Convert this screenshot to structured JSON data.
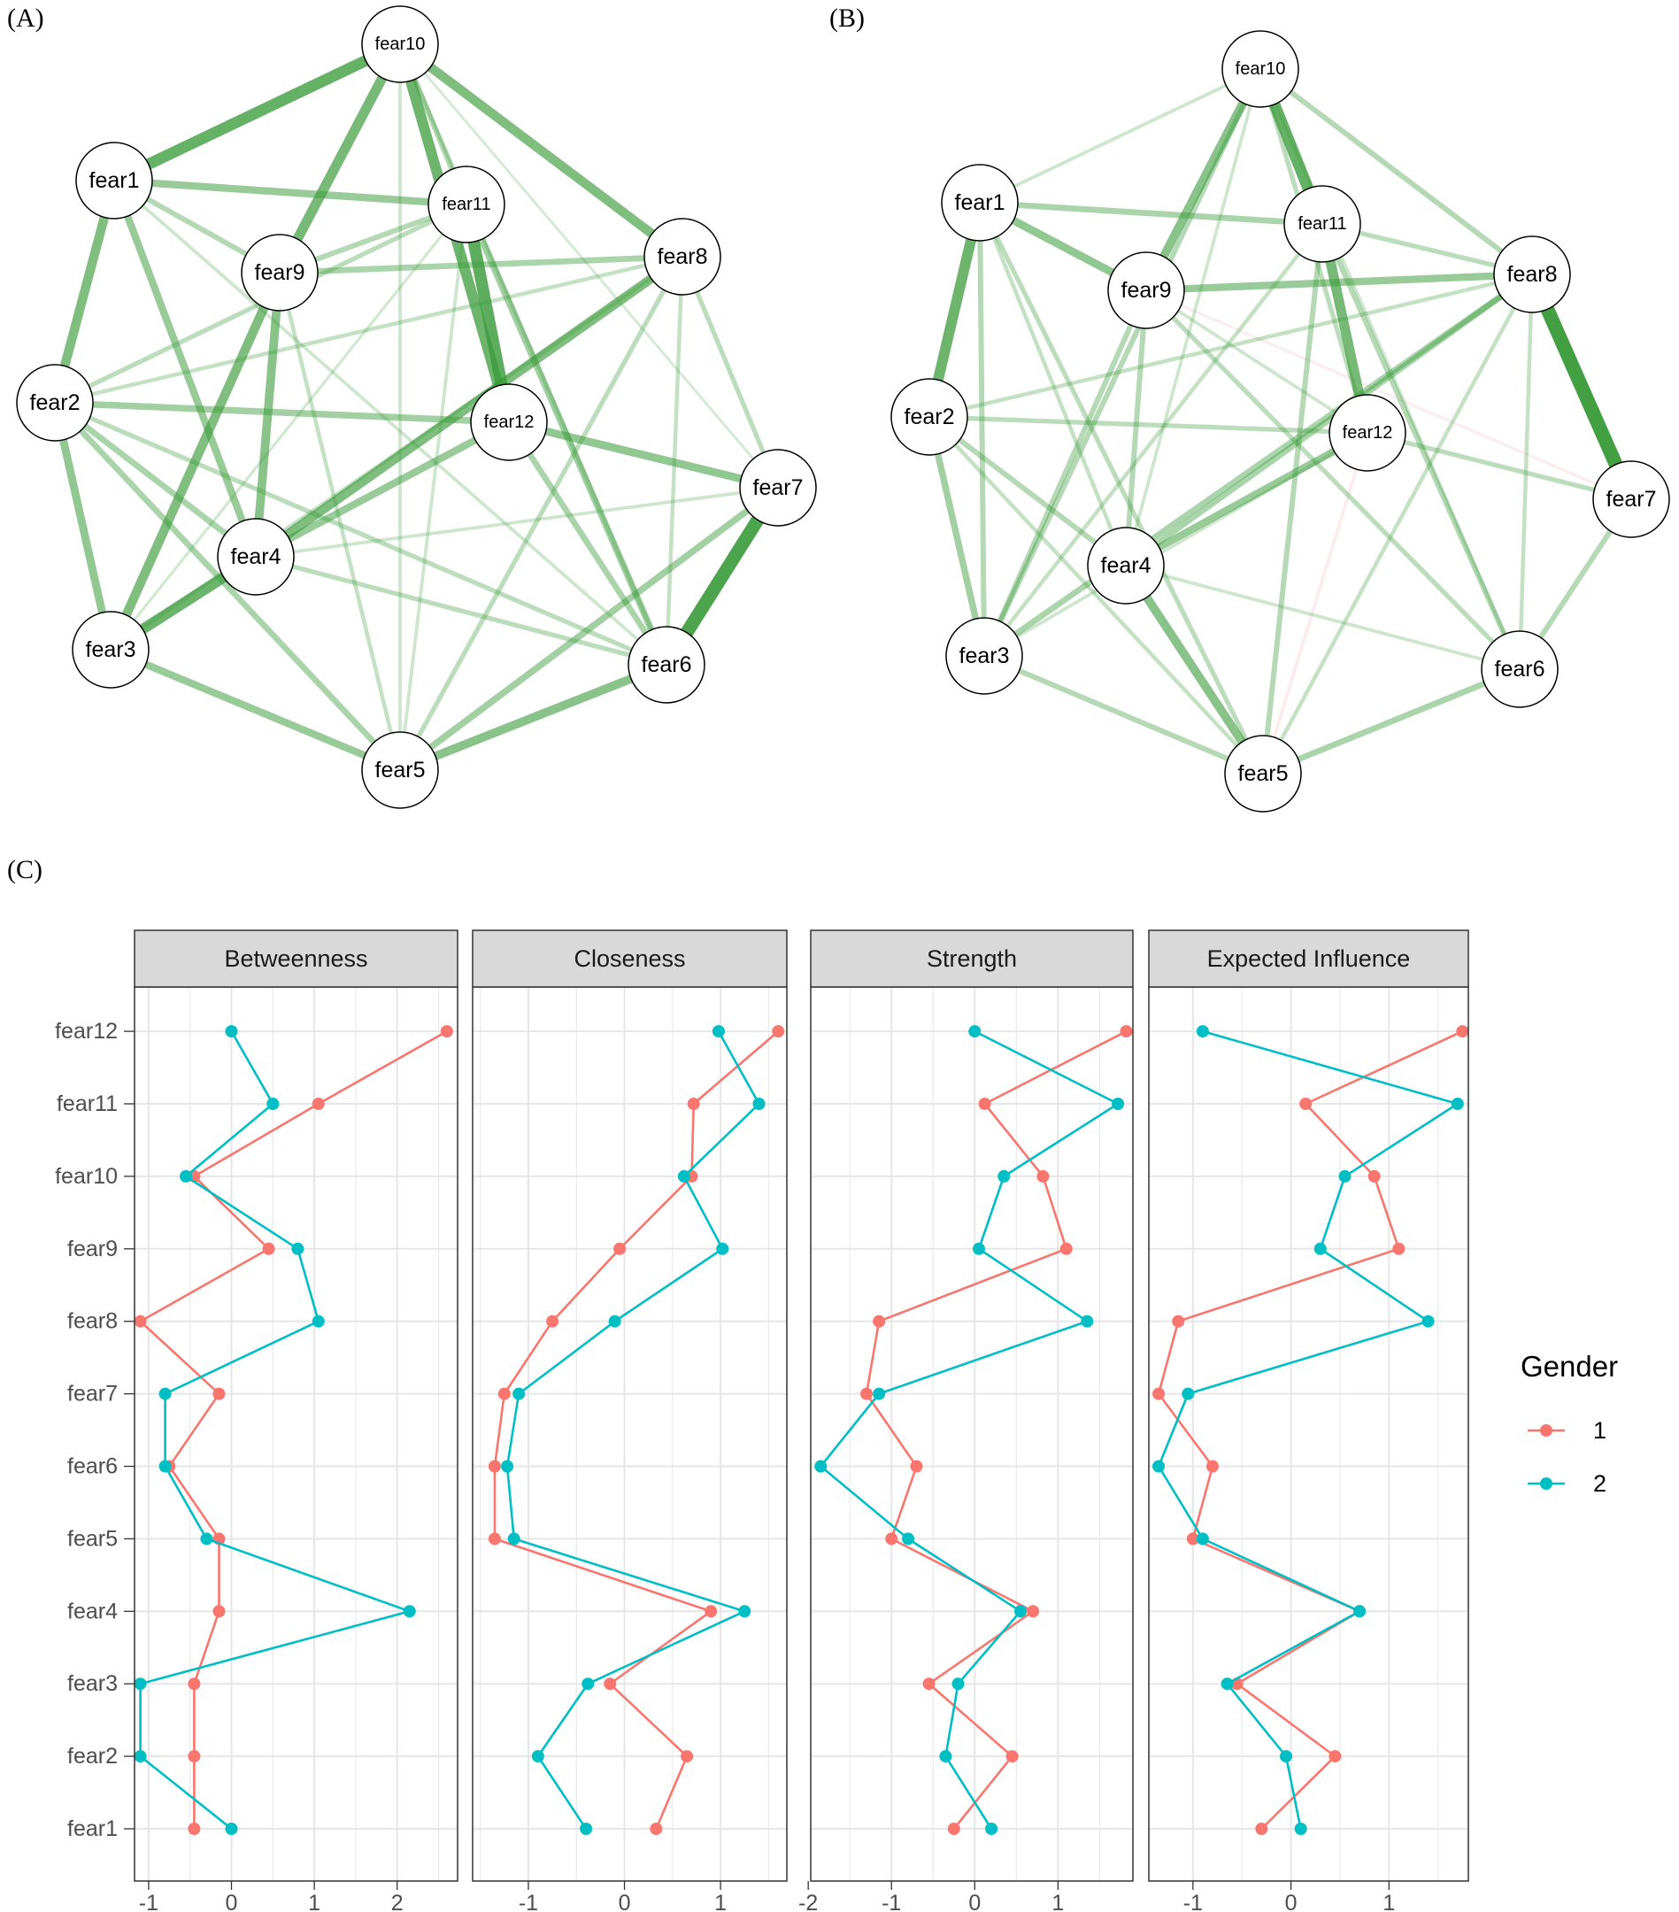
{
  "panels": {
    "a": "(A)",
    "b": "(B)",
    "c": "(C)"
  },
  "colors": {
    "edge_positive": "#3a9b3a",
    "edge_negative": "#f2b5bd",
    "series_1": "#F8766D",
    "series_2": "#00BFC4",
    "strip_fill": "#d9d9d9",
    "grid": "#e6e6e6"
  },
  "networks": [
    {
      "id": "A",
      "node_labels": [
        "fear1",
        "fear2",
        "fear3",
        "fear4",
        "fear5",
        "fear6",
        "fear7",
        "fear8",
        "fear9",
        "fear10",
        "fear11",
        "fear12"
      ],
      "edges": [
        [
          "fear6",
          "fear7",
          0.9
        ],
        [
          "fear10",
          "fear1",
          0.75
        ],
        [
          "fear10",
          "fear9",
          0.65
        ],
        [
          "fear10",
          "fear12",
          0.7
        ],
        [
          "fear10",
          "fear8",
          0.6
        ],
        [
          "fear11",
          "fear12",
          0.8
        ],
        [
          "fear3",
          "fear4",
          0.7
        ],
        [
          "fear3",
          "fear9",
          0.6
        ],
        [
          "fear1",
          "fear2",
          0.6
        ],
        [
          "fear2",
          "fear3",
          0.5
        ],
        [
          "fear1",
          "fear11",
          0.45
        ],
        [
          "fear1",
          "fear4",
          0.45
        ],
        [
          "fear9",
          "fear4",
          0.55
        ],
        [
          "fear8",
          "fear4",
          0.6
        ],
        [
          "fear12",
          "fear7",
          0.5
        ],
        [
          "fear3",
          "fear5",
          0.45
        ],
        [
          "fear5",
          "fear6",
          0.55
        ],
        [
          "fear5",
          "fear7",
          0.4
        ],
        [
          "fear2",
          "fear12",
          0.4
        ],
        [
          "fear2",
          "fear4",
          0.35
        ],
        [
          "fear2",
          "fear5",
          0.35
        ],
        [
          "fear9",
          "fear8",
          0.35
        ],
        [
          "fear9",
          "fear11",
          0.3
        ],
        [
          "fear12",
          "fear4",
          0.45
        ],
        [
          "fear11",
          "fear6",
          0.4
        ],
        [
          "fear12",
          "fear6",
          0.35
        ],
        [
          "fear1",
          "fear9",
          0.3
        ],
        [
          "fear8",
          "fear7",
          0.25
        ],
        [
          "fear8",
          "fear5",
          0.25
        ],
        [
          "fear10",
          "fear6",
          0.2
        ],
        [
          "fear4",
          "fear6",
          0.25
        ],
        [
          "fear2",
          "fear11",
          0.25
        ],
        [
          "fear3",
          "fear8",
          0.2
        ],
        [
          "fear9",
          "fear5",
          0.2
        ],
        [
          "fear10",
          "fear5",
          0.15
        ],
        [
          "fear1",
          "fear6",
          0.15
        ],
        [
          "fear4",
          "fear7",
          0.15
        ],
        [
          "fear2",
          "fear8",
          0.2
        ],
        [
          "fear11",
          "fear5",
          0.15
        ],
        [
          "fear10",
          "fear11",
          0.3
        ],
        [
          "fear8",
          "fear6",
          0.2
        ],
        [
          "fear3",
          "fear11",
          0.12
        ],
        [
          "fear10",
          "fear7",
          0.1
        ],
        [
          "fear2",
          "fear6",
          0.25
        ]
      ]
    },
    {
      "id": "B",
      "node_labels": [
        "fear1",
        "fear2",
        "fear3",
        "fear4",
        "fear5",
        "fear6",
        "fear7",
        "fear8",
        "fear9",
        "fear10",
        "fear11",
        "fear12"
      ],
      "edges": [
        [
          "fear8",
          "fear7",
          0.95
        ],
        [
          "fear10",
          "fear11",
          0.75
        ],
        [
          "fear1",
          "fear2",
          0.7
        ],
        [
          "fear11",
          "fear12",
          0.65
        ],
        [
          "fear10",
          "fear9",
          0.55
        ],
        [
          "fear4",
          "fear5",
          0.55
        ],
        [
          "fear1",
          "fear9",
          0.5
        ],
        [
          "fear9",
          "fear8",
          0.45
        ],
        [
          "fear12",
          "fear4",
          0.45
        ],
        [
          "fear1",
          "fear11",
          0.35
        ],
        [
          "fear2",
          "fear3",
          0.4
        ],
        [
          "fear3",
          "fear8",
          0.35
        ],
        [
          "fear8",
          "fear4",
          0.35
        ],
        [
          "fear10",
          "fear3",
          0.3
        ],
        [
          "fear5",
          "fear6",
          0.35
        ],
        [
          "fear1",
          "fear3",
          0.3
        ],
        [
          "fear9",
          "fear3",
          0.3
        ],
        [
          "fear2",
          "fear4",
          0.3
        ],
        [
          "fear11",
          "fear5",
          0.3
        ],
        [
          "fear10",
          "fear8",
          0.3
        ],
        [
          "fear11",
          "fear6",
          0.3
        ],
        [
          "fear6",
          "fear7",
          0.3
        ],
        [
          "fear3",
          "fear5",
          0.3
        ],
        [
          "fear2",
          "fear12",
          0.25
        ],
        [
          "fear9",
          "fear4",
          0.3
        ],
        [
          "fear1",
          "fear5",
          0.25
        ],
        [
          "fear12",
          "fear7",
          0.25
        ],
        [
          "fear11",
          "fear8",
          0.25
        ],
        [
          "fear10",
          "fear12",
          0.25
        ],
        [
          "fear9",
          "fear6",
          0.25
        ],
        [
          "fear8",
          "fear5",
          0.2
        ],
        [
          "fear10",
          "fear1",
          0.15
        ],
        [
          "fear9",
          "fear12",
          0.15
        ],
        [
          "fear1",
          "fear4",
          0.2
        ],
        [
          "fear11",
          "fear3",
          0.2
        ],
        [
          "fear2",
          "fear8",
          0.2
        ],
        [
          "fear10",
          "fear4",
          0.15
        ],
        [
          "fear10",
          "fear6",
          0.15
        ],
        [
          "fear8",
          "fear6",
          0.2
        ],
        [
          "fear12",
          "fear3",
          0.15
        ],
        [
          "fear12",
          "fear5",
          -0.15
        ],
        [
          "fear9",
          "fear7",
          -0.12
        ],
        [
          "fear4",
          "fear6",
          0.15
        ],
        [
          "fear2",
          "fear5",
          0.2
        ]
      ]
    }
  ],
  "chart_data": {
    "type": "line",
    "facets": [
      "Betweenness",
      "Closeness",
      "Strength",
      "Expected Influence"
    ],
    "categories": [
      "fear1",
      "fear2",
      "fear3",
      "fear4",
      "fear5",
      "fear6",
      "fear7",
      "fear8",
      "fear9",
      "fear10",
      "fear11",
      "fear12"
    ],
    "legend": {
      "title": "Gender",
      "entries": [
        "1",
        "2"
      ],
      "position": "right"
    },
    "x_ticks": [
      [
        -1,
        0,
        1,
        2
      ],
      [
        -1,
        0,
        1
      ],
      [
        -2,
        -1,
        0,
        1
      ],
      [
        -1,
        0,
        1
      ]
    ],
    "xlim": [
      [
        -1.17,
        2.73
      ],
      [
        -1.58,
        1.69
      ],
      [
        -1.97,
        1.9
      ],
      [
        -1.45,
        1.81
      ]
    ],
    "series": [
      {
        "name": "1",
        "values": [
          [
            -0.45,
            -0.45,
            -0.45,
            -0.15,
            -0.15,
            -0.75,
            -0.15,
            -1.1,
            0.45,
            -0.45,
            1.05,
            2.6
          ],
          [
            0.33,
            0.65,
            -0.15,
            0.9,
            -1.35,
            -1.35,
            -1.25,
            -0.75,
            -0.05,
            0.7,
            0.72,
            1.6
          ],
          [
            -0.25,
            0.45,
            -0.55,
            0.7,
            -1.0,
            -0.7,
            -1.3,
            -1.15,
            1.1,
            0.82,
            0.12,
            1.82
          ],
          [
            -0.3,
            0.45,
            -0.55,
            0.7,
            -1.0,
            -0.8,
            -1.35,
            -1.15,
            1.1,
            0.85,
            0.15,
            1.75
          ]
        ]
      },
      {
        "name": "2",
        "values": [
          [
            0.0,
            -1.1,
            -1.1,
            2.15,
            -0.3,
            -0.8,
            -0.8,
            1.05,
            0.8,
            -0.55,
            0.5,
            0.0
          ],
          [
            -0.4,
            -0.9,
            -0.38,
            1.25,
            -1.15,
            -1.22,
            -1.1,
            -0.1,
            1.02,
            0.62,
            1.4,
            0.98
          ],
          [
            0.2,
            -0.35,
            -0.2,
            0.55,
            -0.8,
            -1.85,
            -1.15,
            1.35,
            0.05,
            0.35,
            1.72,
            0.0
          ],
          [
            0.1,
            -0.05,
            -0.65,
            0.7,
            -0.9,
            -1.35,
            -1.05,
            1.4,
            0.3,
            0.55,
            1.7,
            -0.9
          ]
        ]
      }
    ]
  }
}
